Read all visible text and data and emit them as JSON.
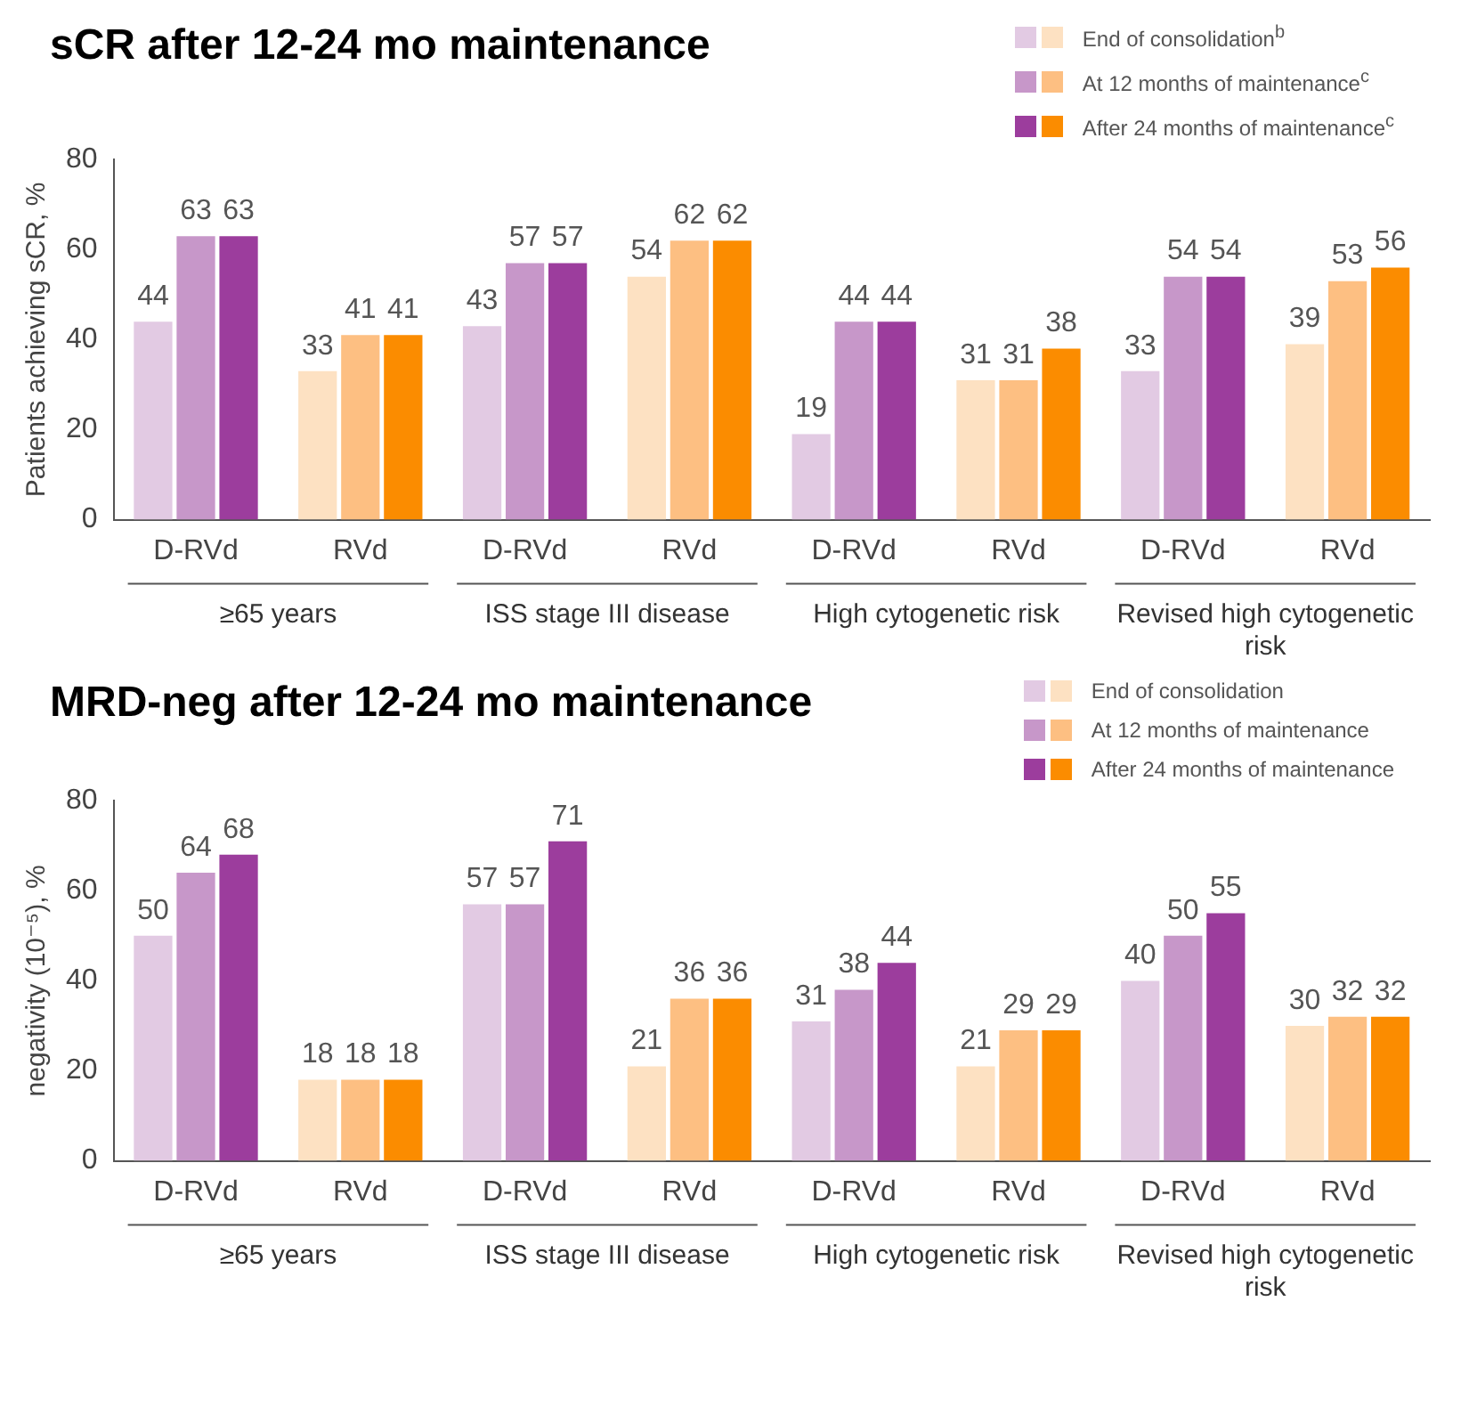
{
  "chart_data": [
    {
      "type": "bar",
      "title": "sCR after 12-24 mo maintenance",
      "ylabel": "Patients achieving sCR, %",
      "categories": [
        "D-RVd",
        "RVd",
        "D-RVd",
        "RVd",
        "D-RVd",
        "RVd",
        "D-RVd",
        "RVd"
      ],
      "annotations": [
        "≥65 years",
        "ISS stage III disease",
        "High cytogenetic risk",
        "Revised high cytogenetic risk"
      ],
      "series": [
        {
          "name": "End of consolidation$^{b}$",
          "colors": [
            "#e2cae3",
            "#fde1c2",
            "#e2cae3",
            "#fde1c2",
            "#e2cae3",
            "#fde1c2",
            "#e2cae3",
            "#fde1c2"
          ],
          "values": [
            44,
            33,
            43,
            54,
            19,
            31,
            33,
            39
          ]
        },
        {
          "name": "At 12 months of maintenance$^{c}$",
          "colors": [
            "#c797c9",
            "#fdbf82",
            "#c797c9",
            "#fdbf82",
            "#c797c9",
            "#fdbf82",
            "#c797c9",
            "#fdbf82"
          ],
          "values": [
            63,
            41,
            57,
            62,
            44,
            31,
            54,
            53
          ]
        },
        {
          "name": "After 24 months of maintenance$^{c}$",
          "colors": [
            "#9c3d9d",
            "#fb8c00",
            "#9c3d9d",
            "#fb8c00",
            "#9c3d9d",
            "#fb8c00",
            "#9c3d9d",
            "#fb8c00"
          ],
          "values": [
            63,
            41,
            57,
            62,
            44,
            38,
            54,
            56
          ]
        }
      ],
      "ylim": [
        0,
        80
      ],
      "yticks": [
        0,
        20,
        40,
        60,
        80
      ],
      "grid": false,
      "legend": "top right",
      "data_labels": true
    },
    {
      "type": "bar",
      "title": "MRD-neg after 12-24 mo maintenance",
      "ylabel": "negativity (10⁻⁵), %",
      "categories": [
        "D-RVd",
        "RVd",
        "D-RVd",
        "RVd",
        "D-RVd",
        "RVd",
        "D-RVd",
        "RVd"
      ],
      "annotations": [
        "≥65 years",
        "ISS stage III disease",
        "High cytogenetic risk",
        "Revised high cytogenetic risk"
      ],
      "series": [
        {
          "name": "End of consolidation",
          "colors": [
            "#e2cae3",
            "#fde1c2",
            "#e2cae3",
            "#fde1c2",
            "#e2cae3",
            "#fde1c2",
            "#e2cae3",
            "#fde1c2"
          ],
          "values": [
            50,
            18,
            57,
            21,
            31,
            21,
            40,
            30
          ]
        },
        {
          "name": "At 12 months of maintenance",
          "colors": [
            "#c797c9",
            "#fdbf82",
            "#c797c9",
            "#fdbf82",
            "#c797c9",
            "#fdbf82",
            "#c797c9",
            "#fdbf82"
          ],
          "values": [
            64,
            18,
            57,
            36,
            38,
            29,
            50,
            32
          ]
        },
        {
          "name": "After 24 months of maintenance",
          "colors": [
            "#9c3d9d",
            "#fb8c00",
            "#9c3d9d",
            "#fb8c00",
            "#9c3d9d",
            "#fb8c00",
            "#9c3d9d",
            "#fb8c00"
          ],
          "values": [
            68,
            18,
            71,
            36,
            44,
            29,
            55,
            32
          ]
        }
      ],
      "ylim": [
        0,
        80
      ],
      "yticks": [
        0,
        20,
        40,
        60,
        80
      ],
      "grid": false,
      "legend": "top right",
      "data_labels": true
    }
  ]
}
